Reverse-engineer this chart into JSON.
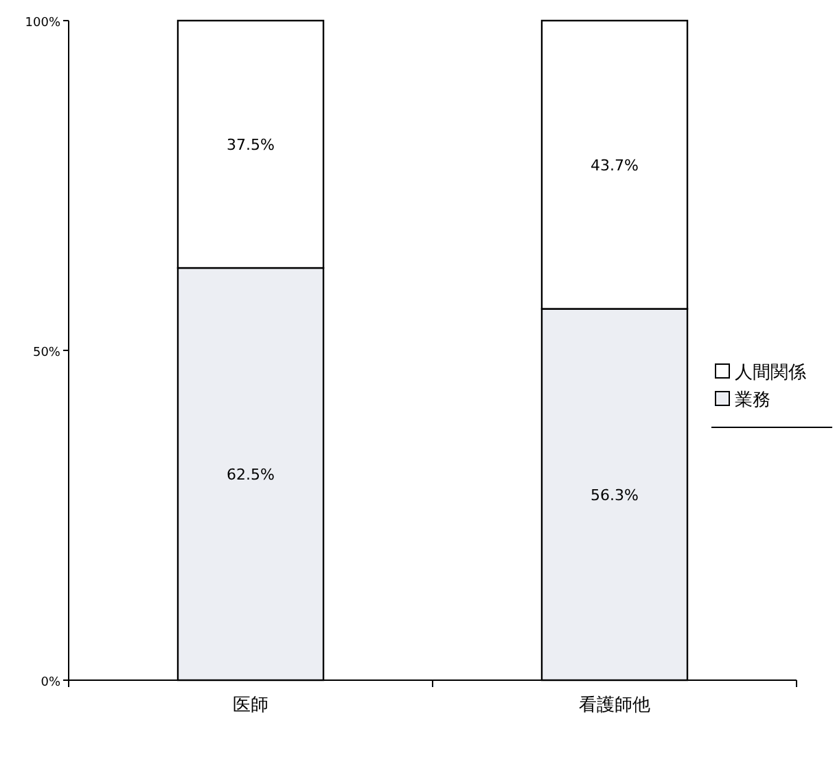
{
  "chart_data": {
    "type": "bar",
    "stacked": true,
    "categories": [
      "医師",
      "看護師他"
    ],
    "series": [
      {
        "name": "業務",
        "color": "#eceef3",
        "values": [
          62.5,
          56.3
        ],
        "value_labels": [
          "62.5%",
          "56.3%"
        ]
      },
      {
        "name": "人間関係",
        "color": "#ffffff",
        "values": [
          37.5,
          43.7
        ],
        "value_labels": [
          "37.5%",
          "43.7%"
        ]
      }
    ],
    "ylim": [
      0,
      100
    ],
    "yticks": [
      {
        "value": 0,
        "label": "0%"
      },
      {
        "value": 50,
        "label": "50%"
      },
      {
        "value": 100,
        "label": "100%"
      }
    ],
    "grid": false,
    "legend": "right"
  }
}
